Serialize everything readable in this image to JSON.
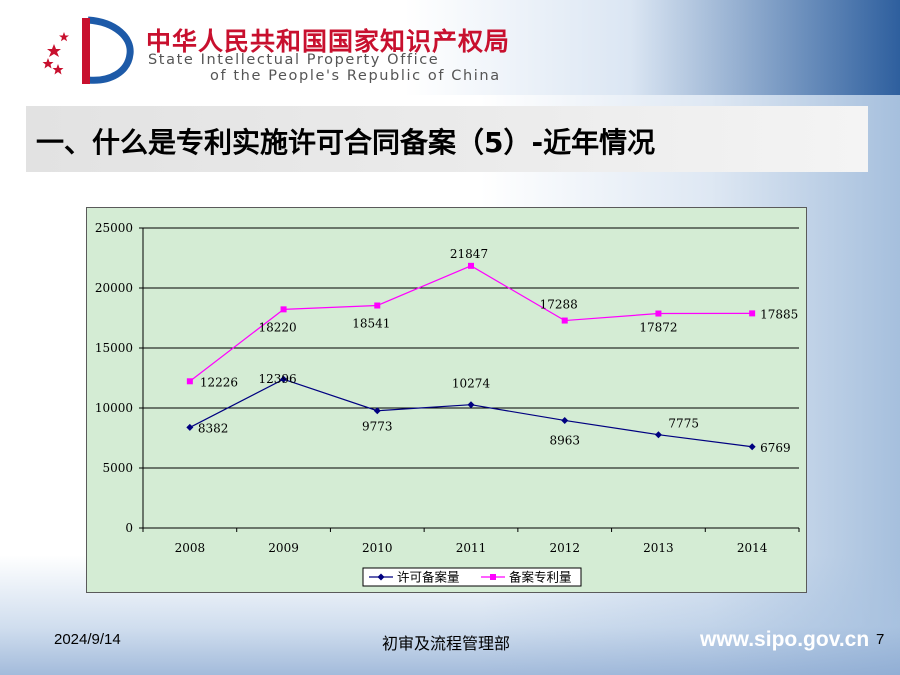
{
  "header": {
    "org_cn": "中华人民共和国国家知识产权局",
    "org_en_line1": "State Intellectual Property Office",
    "org_en_line2": "of the People's Republic of China"
  },
  "slide_title": "一、什么是专利实施许可合同备案（5）-近年情况",
  "chart_data": {
    "type": "line",
    "title": "",
    "xlabel": "",
    "ylabel": "",
    "categories": [
      "2008",
      "2009",
      "2010",
      "2011",
      "2012",
      "2013",
      "2014"
    ],
    "ylim": [
      0,
      25000
    ],
    "yticks": [
      0,
      5000,
      10000,
      15000,
      20000,
      25000
    ],
    "grid": true,
    "legend_position": "bottom",
    "series": [
      {
        "name": "许可备案量",
        "values": [
          8382,
          12396,
          9773,
          10274,
          8963,
          7775,
          6769
        ],
        "color": "#000080",
        "marker": "diamond"
      },
      {
        "name": "备案专利量",
        "values": [
          12226,
          18220,
          18541,
          21847,
          17288,
          17872,
          17885
        ],
        "color": "#ff00ff",
        "marker": "square"
      }
    ]
  },
  "footer": {
    "date": "2024/9/14",
    "department": "初审及流程管理部",
    "url": "www.sipo.gov.cn",
    "page": "7"
  }
}
